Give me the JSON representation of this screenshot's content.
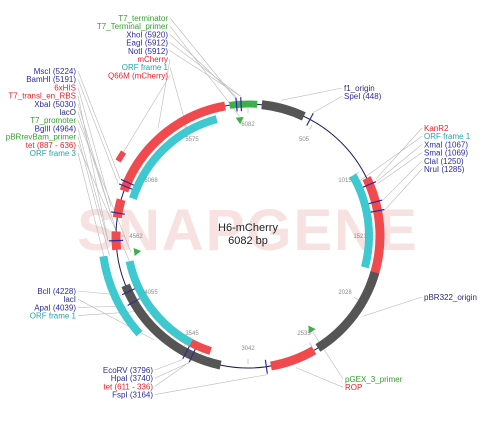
{
  "plasmid": {
    "name": "H6-mCherry",
    "size": "6082 bp"
  },
  "colors": {
    "black": "#2a2a7a",
    "blue": "#2c2c9c",
    "green": "#33a02c",
    "red": "#e8202a",
    "cyan": "#21a5a8",
    "feature_red": "#f04a4f",
    "feature_cyan": "#3dc9cf",
    "feature_gray": "#555555",
    "feature_green": "#3cb04a",
    "watermark": "#f6dcdc"
  },
  "ticks": [
    "6082",
    "505",
    "1015",
    "1521",
    "2028",
    "2535",
    "3042",
    "3545",
    "4055",
    "4562",
    "5068",
    "5575"
  ],
  "watermark": "SNAPGENE",
  "labels_top_left": [
    {
      "text": "T7_terminator",
      "color": "green"
    },
    {
      "text": "T7_Terminal_primer",
      "color": "green"
    },
    {
      "text": "XhoI (5920)",
      "color": "blue"
    },
    {
      "text": "EagI (5912)",
      "color": "blue"
    },
    {
      "text": "NotI (5912)",
      "color": "blue"
    },
    {
      "text": "mCherry",
      "color": "red"
    },
    {
      "text": "ORF frame 1",
      "color": "cyan"
    },
    {
      "text": "Q66M (mCherry)",
      "color": "red"
    }
  ],
  "labels_mid_left": [
    {
      "text": "MscI (5224)",
      "color": "blue"
    },
    {
      "text": "BamHI (5191)",
      "color": "blue"
    },
    {
      "text": "6xHIS",
      "color": "red"
    },
    {
      "text": "T7_transl_en_RBS",
      "color": "red"
    },
    {
      "text": "XbaI (5030)",
      "color": "blue"
    },
    {
      "text": "lacO",
      "color": "black"
    },
    {
      "text": "T7_promoter",
      "color": "green"
    },
    {
      "text": "BglII (4964)",
      "color": "blue"
    },
    {
      "text": "pBRrevBam_primer",
      "color": "green"
    },
    {
      "text": "tet (887 - 636)",
      "color": "red"
    },
    {
      "text": "ORF frame 3",
      "color": "cyan"
    }
  ],
  "labels_lower_left": [
    {
      "text": "BclI (4228)",
      "color": "blue"
    },
    {
      "text": "lacI",
      "color": "black"
    },
    {
      "text": "ApaI (4039)",
      "color": "blue"
    },
    {
      "text": "ORF frame 1",
      "color": "cyan"
    }
  ],
  "labels_bottom_left": [
    {
      "text": "EcoRV (3796)",
      "color": "blue"
    },
    {
      "text": "HpaI (3740)",
      "color": "blue"
    },
    {
      "text": "tet (611 - 336)",
      "color": "red"
    },
    {
      "text": "FspI (3164)",
      "color": "blue"
    }
  ],
  "labels_top_right": [
    {
      "text": "f1_origin",
      "color": "black"
    },
    {
      "text": "SpeI (448)",
      "color": "blue"
    }
  ],
  "labels_mid_right": [
    {
      "text": "KanR2",
      "color": "red"
    },
    {
      "text": "ORF frame 1",
      "color": "cyan"
    },
    {
      "text": "XmaI (1067)",
      "color": "blue"
    },
    {
      "text": "SmaI (1069)",
      "color": "blue"
    },
    {
      "text": "ClaI (1250)",
      "color": "blue"
    },
    {
      "text": "NruI (1285)",
      "color": "blue"
    }
  ],
  "labels_lower_right": [
    {
      "text": "pBR322_origin",
      "color": "black"
    }
  ],
  "labels_bottom_right": [
    {
      "text": "pGEX_3_primer",
      "color": "green"
    },
    {
      "text": "ROP",
      "color": "red"
    }
  ]
}
